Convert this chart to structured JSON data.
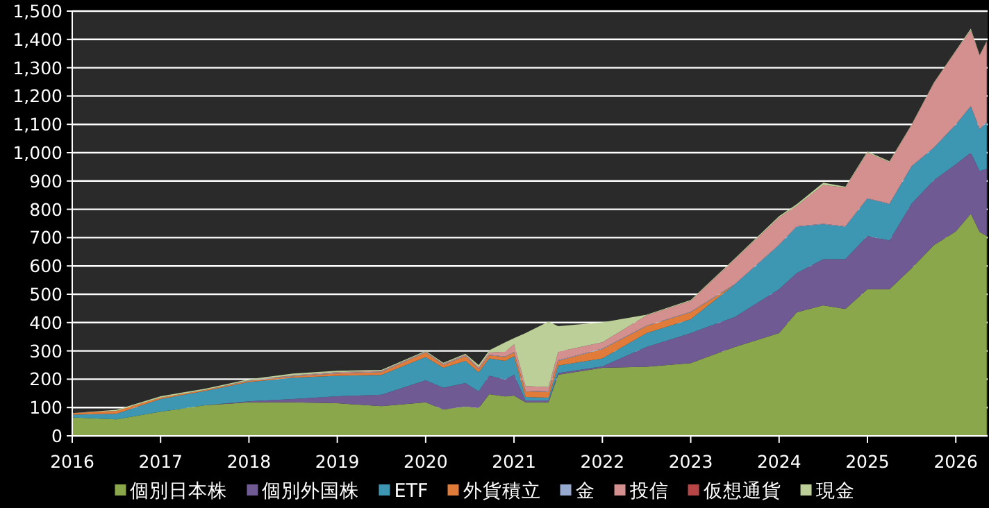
{
  "chart_data": {
    "type": "area",
    "stacked": true,
    "grid": "y",
    "legend": "bottom",
    "x": [
      2016.0,
      2016.5,
      2017.0,
      2017.5,
      2018.0,
      2018.5,
      2019.0,
      2019.5,
      2020.0,
      2020.2,
      2020.45,
      2020.6,
      2020.72,
      2020.9,
      2021.0,
      2021.13,
      2021.39,
      2021.5,
      2022.0,
      2022.5,
      2023.0,
      2023.5,
      2024.0,
      2024.2,
      2024.5,
      2024.75,
      2025.0,
      2025.25,
      2025.5,
      2025.75,
      2026.0,
      2026.17,
      2026.27,
      2026.35
    ],
    "xlim": [
      2016,
      2026.36
    ],
    "xticks": [
      2016,
      2017,
      2018,
      2019,
      2020,
      2021,
      2022,
      2023,
      2024,
      2025,
      2026
    ],
    "ylim": [
      0,
      1500
    ],
    "yticks": [
      0,
      100,
      200,
      300,
      400,
      500,
      600,
      700,
      800,
      900,
      {
        "value": 1000,
        "label": "1,000"
      },
      {
        "value": 1100,
        "label": "1,100"
      },
      {
        "value": 1200,
        "label": "1,200"
      },
      {
        "value": 1300,
        "label": "1,300"
      },
      {
        "value": 1400,
        "label": "1,400"
      },
      {
        "value": 1500,
        "label": "1,500"
      }
    ],
    "series": [
      {
        "name": "個別日本株",
        "color": "#8aa84b",
        "values": [
          65,
          58,
          85,
          108,
          118,
          118,
          115,
          105,
          118,
          93,
          103,
          98,
          147,
          139,
          142,
          118,
          118,
          216,
          240,
          244,
          257,
          314,
          363,
          436,
          461,
          448,
          518,
          518,
          592,
          673,
          722,
          784,
          720,
          706
        ]
      },
      {
        "name": "個別外国株",
        "color": "#6f5a93",
        "values": [
          0,
          0,
          0,
          0,
          4,
          12,
          25,
          40,
          78,
          77,
          83,
          59,
          65,
          60,
          74,
          7,
          7,
          6,
          5,
          70,
          106,
          106,
          155,
          139,
          163,
          176,
          188,
          172,
          228,
          229,
          237,
          216,
          215,
          237
        ]
      },
      {
        "name": "ETF",
        "color": "#3d97b3",
        "values": [
          10,
          20,
          45,
          50,
          68,
          75,
          72,
          70,
          82,
          70,
          79,
          67,
          61,
          66,
          65,
          12,
          10,
          26,
          28,
          49,
          49,
          114,
          155,
          163,
          123,
          114,
          131,
          128,
          131,
          114,
          139,
          163,
          147,
          163
        ]
      },
      {
        "name": "外貨積立",
        "color": "#e07b39",
        "values": [
          5,
          10,
          5,
          4,
          4,
          5,
          8,
          10,
          16,
          10,
          16,
          11,
          11,
          13,
          13,
          20,
          20,
          17,
          33,
          24,
          24,
          0,
          0,
          0,
          0,
          0,
          0,
          0,
          0,
          0,
          0,
          0,
          0,
          0
        ]
      },
      {
        "name": "金",
        "color": "#96a9cf",
        "values": [
          0,
          0,
          0,
          0,
          2,
          2,
          2,
          2,
          2,
          2,
          2,
          2,
          2,
          2,
          2,
          2,
          2,
          2,
          2,
          2,
          2,
          2,
          2,
          2,
          2,
          2,
          2,
          2,
          2,
          2,
          2,
          2,
          2,
          2
        ]
      },
      {
        "name": "投信",
        "color": "#d48f8f",
        "values": [
          0,
          0,
          0,
          0,
          0,
          2,
          3,
          2,
          1,
          2,
          3,
          5,
          8,
          17,
          27,
          17,
          15,
          30,
          22,
          36,
          39,
          88,
          96,
          72,
          137,
          137,
          161,
          147,
          145,
          227,
          259,
          268,
          259,
          284
        ]
      },
      {
        "name": "仮想通貨",
        "color": "#b94646",
        "values": [
          null,
          null,
          null,
          null,
          null,
          null,
          null,
          null,
          null,
          null,
          null,
          null,
          null,
          null,
          null,
          null,
          null,
          null,
          null,
          null,
          null,
          null,
          null,
          null,
          null,
          null,
          null,
          null,
          null,
          null,
          null,
          null,
          null,
          null
        ]
      },
      {
        "name": "現金",
        "color": "#bccf98",
        "values": [
          0,
          4,
          5,
          4,
          4,
          6,
          5,
          4,
          3,
          4,
          4,
          8,
          8,
          33,
          22,
          187,
          231,
          90,
          71,
          3,
          3,
          3,
          5,
          6,
          8,
          3,
          4,
          3,
          2,
          2,
          2,
          5,
          2,
          2
        ]
      }
    ]
  }
}
